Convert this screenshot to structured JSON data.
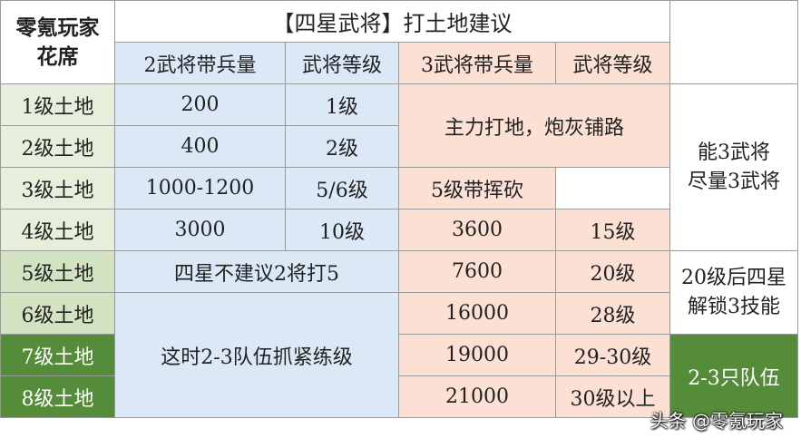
{
  "brand": [
    "零氪玩家",
    "花席"
  ],
  "title": "【四星武将】打土地建议",
  "headers": {
    "two_troops": "2武将带兵量",
    "two_level": "武将等级",
    "three_troops": "3武将带兵量",
    "three_level": "武将等级"
  },
  "rows": [
    {
      "land": "1级土地",
      "two_troops": "200",
      "two_level": "1级"
    },
    {
      "land": "2级土地",
      "two_troops": "400",
      "two_level": "2级"
    },
    {
      "land": "3级土地",
      "two_troops": "1000-1200",
      "two_level": "5/6级",
      "three_troops": "5级带挥砍",
      "three_level": ""
    },
    {
      "land": "4级土地",
      "two_troops": "3000",
      "two_level": "10级",
      "three_troops": "3600",
      "three_level": "15级"
    },
    {
      "land": "5级土地",
      "three_troops": "7600",
      "three_level": "20级"
    },
    {
      "land": "6级土地",
      "three_troops": "16000",
      "three_level": "28级"
    },
    {
      "land": "7级土地",
      "three_troops": "19000",
      "three_level": "29-30级"
    },
    {
      "land": "8级土地",
      "three_troops": "21000",
      "three_level": "30级以上"
    }
  ],
  "merged": {
    "main_force": "主力打地，炮灰铺路",
    "five_no_two": "四星不建议2将打5",
    "train_then": "这时2-3队伍抓紧练级"
  },
  "notes": {
    "use_three": [
      "能3武将",
      "尽量3武将"
    ],
    "unlock": [
      "20级后四星",
      "解锁3技能"
    ],
    "teams": "2-3只队伍"
  },
  "watermark": "头条 @零氪玩家"
}
